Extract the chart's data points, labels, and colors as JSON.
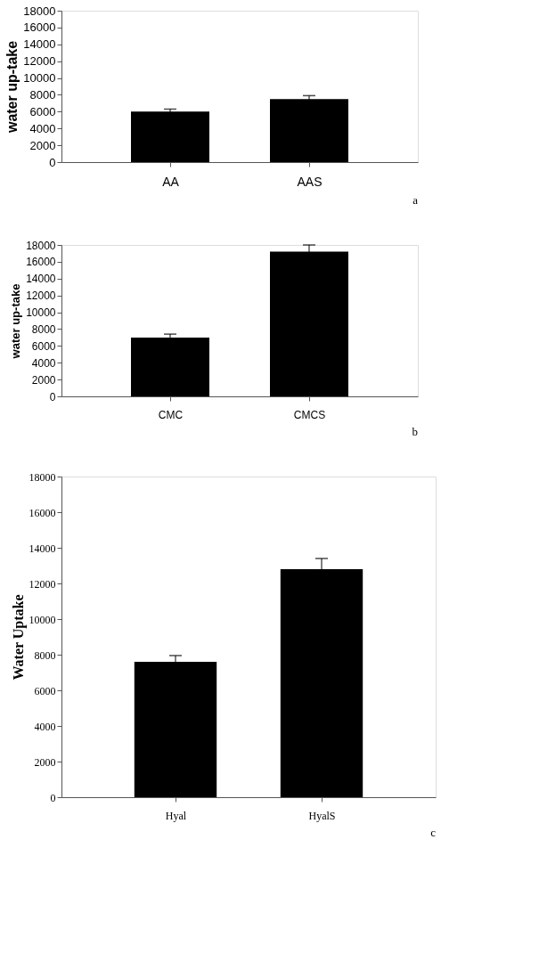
{
  "chart_data": [
    {
      "type": "bar",
      "ylabel": "water up-take",
      "categories": [
        "AA",
        "AAS"
      ],
      "values": [
        6000,
        7500
      ],
      "errors": [
        300,
        400
      ],
      "color": "#000000",
      "ylim": [
        0,
        18000
      ],
      "yticks": [
        0,
        2000,
        4000,
        6000,
        8000,
        10000,
        12000,
        14000,
        16000,
        18000
      ],
      "annotations": [
        "a"
      ]
    },
    {
      "type": "bar",
      "ylabel": "water up-take",
      "categories": [
        "CMC",
        "CMCS"
      ],
      "values": [
        7000,
        17200
      ],
      "errors": [
        400,
        800
      ],
      "color": "#000000",
      "ylim": [
        0,
        18000
      ],
      "yticks": [
        0,
        2000,
        4000,
        6000,
        8000,
        10000,
        12000,
        14000,
        16000,
        18000
      ],
      "annotations": [
        "b"
      ]
    },
    {
      "type": "bar",
      "ylabel": "Water Uptake",
      "categories": [
        "Hyal",
        "HyalS"
      ],
      "values": [
        7600,
        12800
      ],
      "errors": [
        350,
        600
      ],
      "color": "#000000",
      "ylim": [
        0,
        18000
      ],
      "yticks": [
        0,
        2000,
        4000,
        6000,
        8000,
        10000,
        12000,
        14000,
        16000,
        18000
      ],
      "annotations": [
        "c"
      ]
    }
  ]
}
